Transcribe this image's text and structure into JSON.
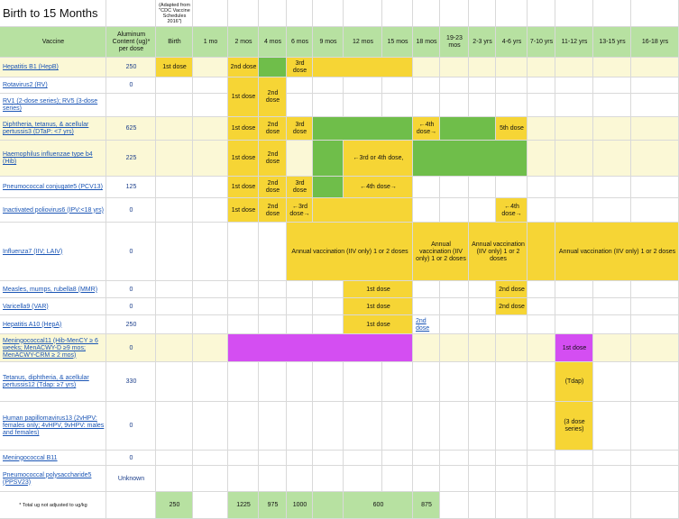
{
  "title": "Birth to 15 Months",
  "source_note": "(Adapted from \"CDC Vaccine Schedules 2016\")",
  "headers": {
    "vaccine": "Vaccine",
    "aluminum": "Aluminum Content (ug)* per dose",
    "ages": [
      "Birth",
      "1 mo",
      "2 mos",
      "4 mos",
      "6 mos",
      "9 mos",
      "12 mos",
      "15 mos",
      "18 mos",
      "19-23 mos",
      "2-3 yrs",
      "4-6 yrs",
      "7-10 yrs",
      "11-12 yrs",
      "13-15 yrs",
      "16-18 yrs"
    ]
  },
  "colors": {
    "header_green": "#b7e1a1",
    "green": "#6fbe4a",
    "yellow": "#f6d535",
    "purple": "#d44ef2",
    "pale_row": "#fbf8d6",
    "link": "#1a55b5"
  },
  "vaccines": [
    {
      "name": "Hepatitis B1 (HepB)",
      "aluminum": "250"
    },
    {
      "name": "Rotavirus2 (RV)",
      "aluminum": "0"
    },
    {
      "name": "RV1 (2-dose series); RV5 (3-dose series)",
      "aluminum": ""
    },
    {
      "name": "Diphtheria, tetanus, & acellular pertussis3 (DTaP: <7 yrs)",
      "aluminum": "625"
    },
    {
      "name": "Haemophilus influenzae type b4 (Hib)",
      "aluminum": "225"
    },
    {
      "name": "Pneumococcal conjugate5 (PCV13)",
      "aluminum": "125"
    },
    {
      "name": "Inactivated poliovirus6 (IPV:<18 yrs)",
      "aluminum": "0"
    },
    {
      "name": "Influenza7 (IIV; LAIV)",
      "aluminum": "0"
    },
    {
      "name": "Measles, mumps, rubella8 (MMR)",
      "aluminum": "0"
    },
    {
      "name": "Varicella9 (VAR)",
      "aluminum": "0"
    },
    {
      "name": "Hepatitis A10 (HepA)",
      "aluminum": "250"
    },
    {
      "name": "Meningococcal11 (Hib-MenCY ≥ 6 weeks; MenACWY-D ≥9 mos; MenACWY-CRM ≥ 2 mos)",
      "aluminum": "0"
    },
    {
      "name": "Tetanus, diphtheria, & acellular pertussis12 (Tdap: ≥7 yrs)",
      "aluminum": "330"
    },
    {
      "name": "Human papillomavirus13 (2vHPV: females only; 4vHPV, 9vHPV: males and females)",
      "aluminum": "0"
    },
    {
      "name": "Meningococcal B11",
      "aluminum": "0"
    },
    {
      "name": "Pneumococcal polysaccharide5 (PPSV23)",
      "aluminum": "Unknown"
    }
  ],
  "cell_texts": {
    "first_dose": "1st dose",
    "second_dose": "2nd dose",
    "third_dose": "3rd dose",
    "fourth_dose_arrow": "←4th dose→",
    "fifth_dose": "5th dose",
    "hib_3rd_4th": "←3rd or 4th dose,",
    "ipv_3rd": "←3rd dose→",
    "ipv_4th": "←4th dose→",
    "influenza_a": "Annual vaccination (IIV only) 1 or 2 doses",
    "influenza_b": "Annual vaccination (IIV only) 1 or 2 doses",
    "influenza_c": "Annual vaccination (IIV only) 1 or 2 doses",
    "influenza_d": "Annual vaccination (IIV only) 1 or 2 doses",
    "tdap": "(Tdap)",
    "hpv": "(3 dose series)"
  },
  "totals": {
    "label": "* Total ug not adjusted to ug/kg",
    "birth": "250",
    "mo2": "1225",
    "mo4": "975",
    "mo6": "1000",
    "mo12": "600",
    "mo18": "875"
  }
}
